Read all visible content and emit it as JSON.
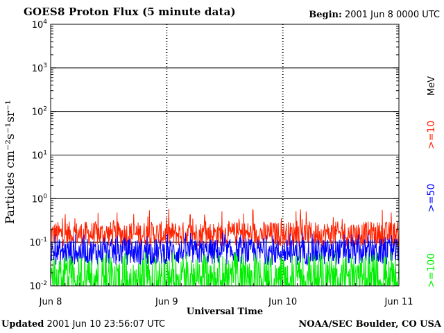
{
  "header": {
    "title": "GOES8 Proton Flux (5 minute data)",
    "begin_label": "Begin:",
    "begin_value": "2001 Jun 8 0000 UTC"
  },
  "footer": {
    "updated_label": "Updated",
    "updated_value": "2001 Jun 10 23:56:07 UTC",
    "source": "NOAA/SEC Boulder, CO USA"
  },
  "chart_data": {
    "type": "line",
    "title": "GOES8 Proton Flux (5 minute data)",
    "xlabel": "Universal Time",
    "ylabel": "Particles cm⁻²s⁻¹sr⁻¹",
    "yscale": "log",
    "ylim": [
      0.01,
      10000
    ],
    "xlim": [
      "2001 Jun 8 0000 UTC",
      "2001 Jun 11 0000 UTC"
    ],
    "x_ticks": [
      "Jun 8",
      "Jun 9",
      "Jun 10",
      "Jun 11"
    ],
    "y_ticks": [
      {
        "base": "10",
        "exp": "-2",
        "value": 0.01
      },
      {
        "base": "10",
        "exp": "-1",
        "value": 0.1
      },
      {
        "base": "10",
        "exp": "0",
        "value": 1
      },
      {
        "base": "10",
        "exp": "1",
        "value": 10
      },
      {
        "base": "10",
        "exp": "2",
        "value": 100
      },
      {
        "base": "10",
        "exp": "3",
        "value": 1000
      },
      {
        "base": "10",
        "exp": "4",
        "value": 10000
      }
    ],
    "grid": true,
    "legend_position": "right",
    "legend_unit": "MeV",
    "series": [
      {
        "name": ">=10",
        "color": "#ff2200",
        "typical_range": [
          0.08,
          0.3
        ],
        "peak": 0.6
      },
      {
        "name": ">=50",
        "color": "#0000ff",
        "typical_range": [
          0.03,
          0.12
        ],
        "peak": 0.17
      },
      {
        "name": ">=100",
        "color": "#00ee00",
        "typical_range": [
          0.01,
          0.05
        ],
        "peak": 0.06
      }
    ]
  }
}
